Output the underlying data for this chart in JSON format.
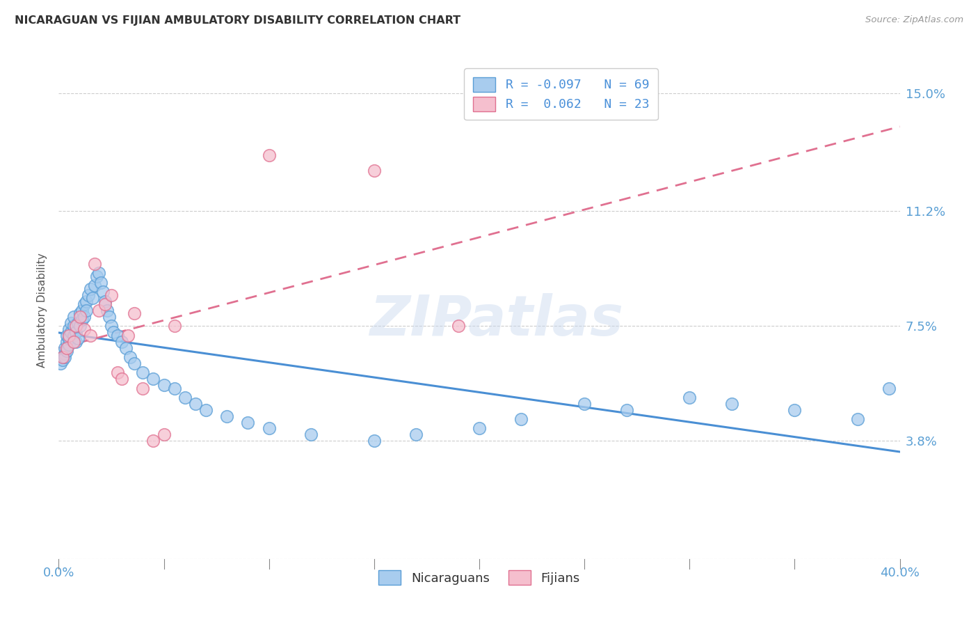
{
  "title": "NICARAGUAN VS FIJIAN AMBULATORY DISABILITY CORRELATION CHART",
  "source": "Source: ZipAtlas.com",
  "ylabel": "Ambulatory Disability",
  "ytick_vals": [
    0.0,
    0.038,
    0.075,
    0.112,
    0.15
  ],
  "ytick_labels": [
    "",
    "3.8%",
    "7.5%",
    "11.2%",
    "15.0%"
  ],
  "xtick_vals": [
    0.0,
    0.05,
    0.1,
    0.15,
    0.2,
    0.25,
    0.3,
    0.35,
    0.4
  ],
  "xlim": [
    0.0,
    0.4
  ],
  "ylim": [
    0.0,
    0.16
  ],
  "blue_face": "#A8CCEE",
  "blue_edge": "#5A9ED6",
  "pink_face": "#F5BFCE",
  "pink_edge": "#E07090",
  "blue_line": "#4A8FD4",
  "pink_line": "#E07090",
  "watermark": "ZIPatlas",
  "nicaraguan_x": [
    0.001,
    0.002,
    0.002,
    0.003,
    0.003,
    0.003,
    0.004,
    0.004,
    0.004,
    0.005,
    0.005,
    0.005,
    0.006,
    0.006,
    0.007,
    0.007,
    0.007,
    0.008,
    0.008,
    0.009,
    0.009,
    0.01,
    0.01,
    0.011,
    0.011,
    0.012,
    0.012,
    0.013,
    0.013,
    0.014,
    0.015,
    0.016,
    0.017,
    0.018,
    0.019,
    0.02,
    0.021,
    0.022,
    0.023,
    0.024,
    0.025,
    0.026,
    0.028,
    0.03,
    0.032,
    0.034,
    0.036,
    0.04,
    0.045,
    0.05,
    0.055,
    0.06,
    0.065,
    0.07,
    0.08,
    0.09,
    0.1,
    0.12,
    0.15,
    0.17,
    0.2,
    0.22,
    0.25,
    0.27,
    0.3,
    0.32,
    0.35,
    0.38,
    0.395
  ],
  "nicaraguan_y": [
    0.063,
    0.065,
    0.064,
    0.066,
    0.068,
    0.065,
    0.07,
    0.067,
    0.072,
    0.069,
    0.071,
    0.074,
    0.073,
    0.076,
    0.072,
    0.075,
    0.078,
    0.07,
    0.073,
    0.071,
    0.076,
    0.075,
    0.079,
    0.077,
    0.08,
    0.082,
    0.078,
    0.083,
    0.08,
    0.085,
    0.087,
    0.084,
    0.088,
    0.091,
    0.092,
    0.089,
    0.086,
    0.083,
    0.08,
    0.078,
    0.075,
    0.073,
    0.072,
    0.07,
    0.068,
    0.065,
    0.063,
    0.06,
    0.058,
    0.056,
    0.055,
    0.052,
    0.05,
    0.048,
    0.046,
    0.044,
    0.042,
    0.04,
    0.038,
    0.04,
    0.042,
    0.045,
    0.05,
    0.048,
    0.052,
    0.05,
    0.048,
    0.045,
    0.055
  ],
  "fijian_x": [
    0.002,
    0.004,
    0.005,
    0.007,
    0.008,
    0.01,
    0.012,
    0.015,
    0.017,
    0.019,
    0.022,
    0.025,
    0.028,
    0.03,
    0.033,
    0.036,
    0.04,
    0.045,
    0.05,
    0.055,
    0.1,
    0.15,
    0.19
  ],
  "fijian_y": [
    0.065,
    0.068,
    0.072,
    0.07,
    0.075,
    0.078,
    0.074,
    0.072,
    0.095,
    0.08,
    0.082,
    0.085,
    0.06,
    0.058,
    0.072,
    0.079,
    0.055,
    0.038,
    0.04,
    0.075,
    0.13,
    0.125,
    0.075
  ]
}
